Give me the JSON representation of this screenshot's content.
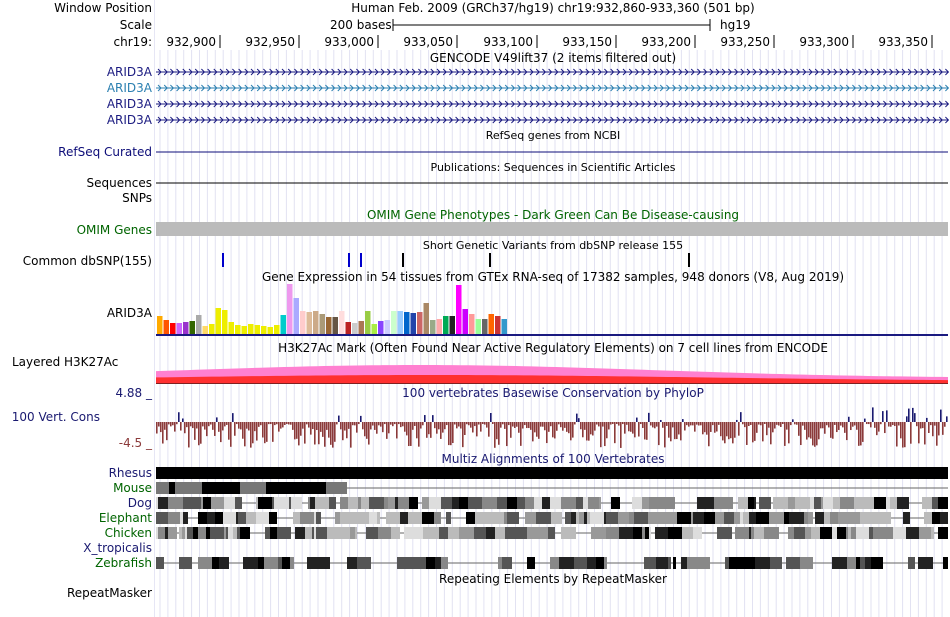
{
  "header": {
    "window_position_label": "Window Position",
    "scale_label": "Scale",
    "chrom_label": "chr19:",
    "assembly_text": "Human Feb. 2009 (GRCh37/hg19)   chr19:932,860-933,360 (501 bp)",
    "scale_text": "200 bases",
    "scale_db": "hg19",
    "ruler_ticks": [
      "932,900",
      "932,950",
      "933,000",
      "933,050",
      "933,100",
      "933,150",
      "933,200",
      "933,250",
      "933,300",
      "933,350"
    ]
  },
  "tracks": {
    "gencode": {
      "title": "GENCODE V49lift37 (2 items filtered out)",
      "items": [
        {
          "name": "ARID3A",
          "color": "#1a1a80"
        },
        {
          "name": "ARID3A",
          "color": "#2a7fb0"
        },
        {
          "name": "ARID3A",
          "color": "#1a1a80"
        },
        {
          "name": "ARID3A",
          "color": "#1a1a80"
        }
      ]
    },
    "refseq": {
      "title": "RefSeq genes from NCBI",
      "label": "RefSeq Curated",
      "color": "#0c0c78"
    },
    "publications": {
      "title": "Publications: Sequences in Scientific Articles",
      "label": "Sequences"
    },
    "snps": {
      "label": "SNPs"
    },
    "omim": {
      "title": "OMIM Gene Phenotypes - Dark Green Can Be Disease-causing",
      "label": "OMIM Genes",
      "color": "#006400"
    },
    "dbsnp": {
      "title": "Short Genetic Variants from dbSNP release 155",
      "label": "Common dbSNP(155)"
    },
    "gtex": {
      "title": "Gene Expression in 54 tissues from GTEx RNA-seq of 17382 samples, 948 donors (V8, Aug 2019)",
      "label": "ARID3A",
      "bar_colors": [
        "#ffaa00",
        "#ff5500",
        "#ff0000",
        "#cc66ff",
        "#9933cc",
        "#336600",
        "#aaaaaa",
        "#ffd966",
        "#eeee00",
        "#eeee00",
        "#eeee00",
        "#eeee00",
        "#eeee00",
        "#eeee00",
        "#eeee00",
        "#eeee00",
        "#eeee00",
        "#eeee00",
        "#eeee00",
        "#00cccc",
        "#ee99ee",
        "#aaaaff",
        "#ffcccc",
        "#ddbb99",
        "#ccaa88",
        "#aa9977",
        "#996633",
        "#665544",
        "#ffdddd",
        "#bb2222",
        "#cccccc",
        "#aa7755",
        "#99cc44",
        "#aaee44",
        "#8844ff",
        "#ccccff",
        "#ccffcc",
        "#99ccff",
        "#0066cc",
        "#2244aa",
        "#cc6666",
        "#aa8866",
        "#99aa88",
        "#ffaaaa",
        "#00aa55",
        "#222222",
        "#ff00ff",
        "#cc00ff",
        "#ff9999",
        "#99ff99",
        "#666666",
        "#ff6600",
        "#cc3333",
        "#3399cc"
      ],
      "bar_values": [
        0.36,
        0.28,
        0.22,
        0.22,
        0.24,
        0.26,
        0.38,
        0.16,
        0.2,
        0.52,
        0.48,
        0.24,
        0.18,
        0.16,
        0.2,
        0.18,
        0.16,
        0.14,
        0.18,
        0.38,
        1.0,
        0.72,
        0.46,
        0.44,
        0.46,
        0.4,
        0.34,
        0.34,
        0.46,
        0.24,
        0.22,
        0.26,
        0.46,
        0.2,
        0.26,
        0.28,
        0.46,
        0.46,
        0.44,
        0.42,
        0.44,
        0.62,
        0.28,
        0.3,
        0.36,
        0.36,
        0.98,
        0.5,
        0.4,
        0.3,
        0.3,
        0.4,
        0.36,
        0.3
      ]
    },
    "h3k27ac": {
      "title": "H3K27Ac Mark (Often Found Near Active Regulatory Elements) on 7 cell lines from ENCODE",
      "label": "Layered H3K27Ac"
    },
    "cons": {
      "title": "100 vertebrates Basewise Conservation by PhyloP",
      "label": "100 Vert. Cons",
      "max_label": "4.88 _",
      "min_label": "-4.5 _",
      "pos_color": "#191970",
      "neg_color": "#8b3a3a"
    },
    "multiz": {
      "title": "Multiz Alignments of 100 Vertebrates",
      "species": [
        {
          "name": "Rhesus",
          "color": "#191970"
        },
        {
          "name": "Mouse",
          "color": "#006400"
        },
        {
          "name": "Dog",
          "color": "#191970"
        },
        {
          "name": "Elephant",
          "color": "#006400"
        },
        {
          "name": "Chicken",
          "color": "#006400"
        },
        {
          "name": "X_tropicalis",
          "color": "#191970"
        },
        {
          "name": "Zebrafish",
          "color": "#006400"
        }
      ]
    },
    "rmsk": {
      "title": "Repeating Elements by RepeatMasker",
      "label": "RepeatMasker"
    }
  }
}
